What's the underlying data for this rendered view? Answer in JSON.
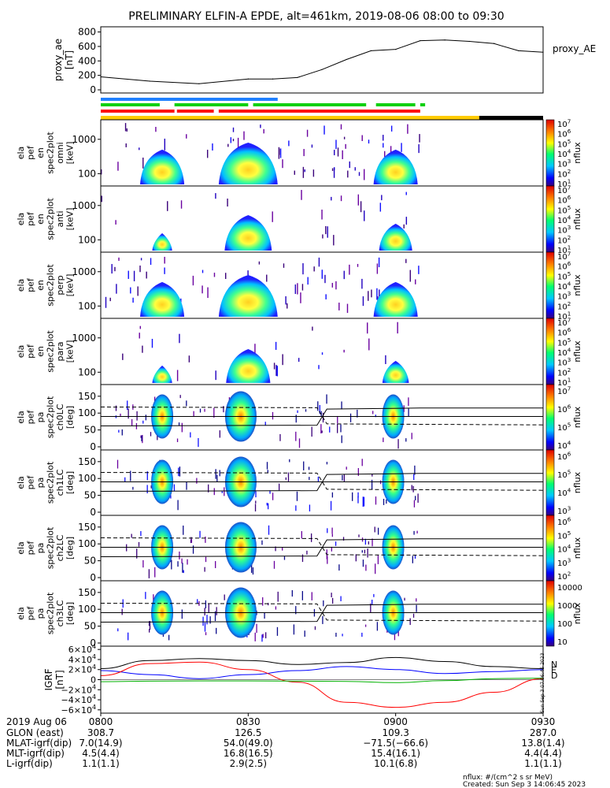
{
  "title": "PRELIMINARY ELFIN-A EPDE, alt=461km, 2019-08-06 08:00 to 09:30",
  "chart_data": [
    {
      "id": "proxy_ae",
      "type": "line",
      "ylabel": [
        "proxy_ae",
        "[nT]"
      ],
      "legend": "proxy_AE",
      "yticks": [
        "800",
        "600",
        "400",
        "200",
        "0"
      ],
      "ylim": [
        0,
        850
      ],
      "x_minutes": [
        0,
        10,
        20,
        30,
        35,
        40,
        45,
        50,
        55,
        60,
        65,
        70,
        75,
        80,
        85,
        90
      ],
      "values": [
        180,
        120,
        85,
        150,
        150,
        170,
        280,
        420,
        540,
        560,
        680,
        690,
        670,
        640,
        540,
        520
      ]
    },
    {
      "id": "status_bars",
      "type": "bar",
      "series": [
        {
          "color": "#2080ff",
          "segments_min": [
            [
              0,
              36
            ]
          ]
        },
        {
          "color": "#10d010",
          "segments_min": [
            [
              0,
              12
            ],
            [
              15,
              30
            ],
            [
              31,
              54
            ],
            [
              56,
              64
            ],
            [
              65,
              66
            ]
          ]
        },
        {
          "color": "#ff1010",
          "segments_min": [
            [
              0,
              15
            ],
            [
              15.5,
              23
            ],
            [
              24,
              65
            ]
          ]
        },
        {
          "color": "#ffcc00",
          "segments_min": [
            [
              0,
              77
            ]
          ]
        },
        {
          "color": "#000000",
          "segments_min": [
            [
              77,
              90
            ]
          ]
        }
      ]
    },
    {
      "id": "spec_omni",
      "type": "heatmap",
      "ylabel": [
        "ela",
        "pef",
        "en",
        "spec2plot",
        "omni",
        "[keV]"
      ],
      "yticks": [
        "1000",
        "100"
      ],
      "colorbar": {
        "label": "nflux",
        "ticks": [
          "10^7",
          "10^6",
          "10^5",
          "10^4",
          "10^3",
          "10^2",
          "10^1"
        ]
      },
      "flux_peaks_min": [
        12.5,
        30,
        60
      ]
    },
    {
      "id": "spec_anti",
      "type": "heatmap",
      "ylabel": [
        "ela",
        "pef",
        "en",
        "spec2plot",
        "anti",
        "[keV]"
      ],
      "yticks": [
        "1000",
        "100"
      ],
      "colorbar": {
        "label": "nflux",
        "ticks": [
          "10^7",
          "10^6",
          "10^5",
          "10^4",
          "10^3",
          "10^2",
          "10^1"
        ]
      },
      "flux_peaks_min": [
        12.5,
        30,
        60
      ]
    },
    {
      "id": "spec_perp",
      "type": "heatmap",
      "ylabel": [
        "ela",
        "pef",
        "en",
        "spec2plot",
        "perp",
        "[keV]"
      ],
      "yticks": [
        "1000",
        "100"
      ],
      "colorbar": {
        "label": "nflux",
        "ticks": [
          "10^7",
          "10^6",
          "10^5",
          "10^4",
          "10^3",
          "10^2",
          "10^1"
        ]
      },
      "flux_peaks_min": [
        12.5,
        30,
        60
      ]
    },
    {
      "id": "spec_para",
      "type": "heatmap",
      "ylabel": [
        "ela",
        "pef",
        "en",
        "spec2plot",
        "para",
        "[keV]"
      ],
      "yticks": [
        "1000",
        "100"
      ],
      "colorbar": {
        "label": "nflux",
        "ticks": [
          "10^7",
          "10^6",
          "10^5",
          "10^4",
          "10^3",
          "10^2",
          "10^1"
        ]
      },
      "flux_peaks_min": [
        12.5,
        30,
        60
      ]
    },
    {
      "id": "pa_ch0",
      "type": "heatmap",
      "ylabel": [
        "ela",
        "pef",
        "pa",
        "spec2plot",
        "ch0LC",
        "[deg]"
      ],
      "yticks": [
        "150",
        "100",
        "50",
        "0"
      ],
      "colorbar": {
        "label": "nflux",
        "ticks": [
          "10^7",
          "10^6",
          "10^5",
          "10^4"
        ]
      }
    },
    {
      "id": "pa_ch1",
      "type": "heatmap",
      "ylabel": [
        "ela",
        "pef",
        "pa",
        "spec2plot",
        "ch1LC",
        "[deg]"
      ],
      "yticks": [
        "150",
        "100",
        "50",
        "0"
      ],
      "colorbar": {
        "label": "nflux",
        "ticks": [
          "10^6",
          "10^5",
          "10^4",
          "10^3"
        ]
      }
    },
    {
      "id": "pa_ch2",
      "type": "heatmap",
      "ylabel": [
        "ela",
        "pef",
        "pa",
        "spec2plot",
        "ch2LC",
        "[deg]"
      ],
      "yticks": [
        "150",
        "100",
        "50",
        "0"
      ],
      "colorbar": {
        "label": "nflux",
        "ticks": [
          "10^6",
          "10^5",
          "10^4",
          "10^3",
          "10^2"
        ]
      }
    },
    {
      "id": "pa_ch3",
      "type": "heatmap",
      "ylabel": [
        "ela",
        "pef",
        "pa",
        "spec2plot",
        "ch3LC",
        "[deg]"
      ],
      "yticks": [
        "150",
        "100",
        "50",
        "0"
      ],
      "colorbar": {
        "label": "nflux",
        "ticks": [
          "10000",
          "1000",
          "100",
          "10"
        ]
      }
    },
    {
      "id": "igrf",
      "type": "line",
      "ylabel": [
        "IGRF",
        "[nT]"
      ],
      "yticks": [
        "6×10^4",
        "4×10^4",
        "2×10^4",
        "0",
        "−2×10^4",
        "−4×10^4",
        "−6×10^4"
      ],
      "ylim": [
        -65000,
        65000
      ],
      "legend": [
        "N",
        "E",
        "D"
      ],
      "series": [
        {
          "name": "N",
          "color": "#0000ff",
          "x_minutes": [
            0,
            10,
            20,
            30,
            40,
            50,
            60,
            70,
            80,
            90
          ],
          "values": [
            18000,
            10000,
            2000,
            10000,
            18000,
            26000,
            20000,
            12000,
            16000,
            20000
          ]
        },
        {
          "name": "E",
          "color": "#ff0000",
          "x_minutes": [
            0,
            10,
            20,
            30,
            40,
            50,
            60,
            70,
            80,
            90
          ],
          "values": [
            8000,
            32000,
            35000,
            20000,
            -5000,
            -45000,
            -55000,
            -45000,
            -25000,
            2000
          ]
        },
        {
          "name": "D",
          "color": "#00b000",
          "x_minutes": [
            0,
            10,
            20,
            30,
            40,
            50,
            60,
            70,
            80,
            90
          ],
          "values": [
            -4000,
            -3000,
            -2500,
            -2500,
            -3000,
            -3500,
            -6000,
            -2000,
            2000,
            3000
          ]
        },
        {
          "color": "#000000",
          "x_minutes": [
            0,
            10,
            20,
            30,
            40,
            50,
            60,
            70,
            80,
            90
          ],
          "values": [
            22000,
            38000,
            42000,
            38000,
            30000,
            34000,
            44000,
            36000,
            26000,
            22000
          ]
        }
      ]
    }
  ],
  "orbit_table": {
    "date": "2019 Aug 06",
    "rows": [
      {
        "label": "GLON (east)",
        "values": [
          "308.7",
          "126.5",
          "109.3",
          "287.0"
        ]
      },
      {
        "label": "MLAT-igrf(dip)",
        "values": [
          "7.0(14.9)",
          "54.0(49.0)",
          "−71.5(−66.6)",
          "13.8(1.4)"
        ]
      },
      {
        "label": "MLT-igrf(dip)",
        "values": [
          "4.5(4.4)",
          "16.8(16.5)",
          "15.4(16.1)",
          "4.4(4.4)"
        ]
      },
      {
        "label": "L-igrf(dip)",
        "values": [
          "1.1(1.1)",
          "2.9(2.5)",
          "10.1(6.8)",
          "1.1(1.1)"
        ]
      }
    ],
    "times": [
      "0800",
      "0830",
      "0900",
      "0930"
    ]
  },
  "footer": {
    "units": "nflux: #/(cm^2 s sr MeV)",
    "created": "Created: Sun Sep  3 14:06:45 2023"
  },
  "side_stamp": "Sun Sep  3 07:06:45 2023"
}
